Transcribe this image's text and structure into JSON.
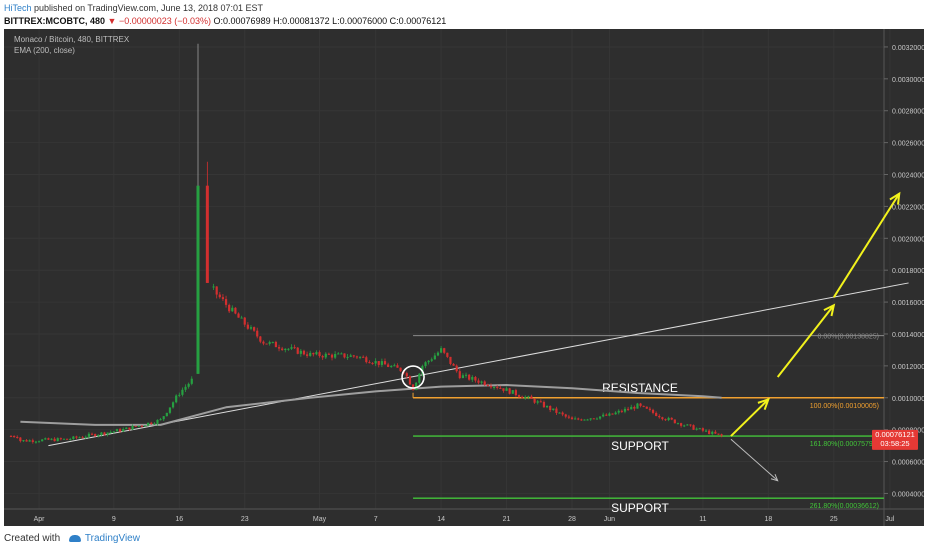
{
  "header": {
    "author": "HiTech",
    "published": "published on TradingView.com, June 13, 2018 07:01 EST",
    "symbol": "BITTREX:MCOBTC, 480",
    "change": "▼ −0.00000023 (−0.03%)",
    "ohlc": "O:0.00076989 H:0.00081372 L:0.00076000 C:0.00076121"
  },
  "legend": {
    "title": "Monaco / Bitcoin, 480, BITTREX",
    "indicator": "EMA (200, close)"
  },
  "footer": {
    "created": "Created with",
    "brand": "TradingView"
  },
  "price_label": {
    "value": "0.00076121",
    "countdown": "03:58:25",
    "color": "#e53935"
  },
  "colors": {
    "background": "#2e2e2e",
    "up": "#26a041",
    "down": "#d32f2f",
    "fib": "#f0a030",
    "support": "#43c43a",
    "arrow": "#f2f21c",
    "ema": "#9e9e9e",
    "trend": "#dddddd"
  },
  "chart_data": {
    "type": "candlestick",
    "title": "Monaco / Bitcoin, 480, BITTREX",
    "y_ticks": [
      "0.00320000",
      "0.00300000",
      "0.00280000",
      "0.00260000",
      "0.00240000",
      "0.00220000",
      "0.00200000",
      "0.00180000",
      "0.00160000",
      "0.00140000",
      "0.00120000",
      "0.00100000",
      "0.00080000",
      "0.00060000",
      "0.00040000"
    ],
    "x_ticks": [
      "Apr",
      "9",
      "16",
      "23",
      "May",
      "7",
      "14",
      "21",
      "28",
      "Jun",
      "11",
      "18",
      "25",
      "Jul"
    ],
    "ylim": [
      0.00034,
      0.0033
    ],
    "price_path": [
      {
        "d": "2018-03-30",
        "p": 0.00073
      },
      {
        "d": "2018-04-04",
        "p": 0.00074
      },
      {
        "d": "2018-04-10",
        "p": 0.0008
      },
      {
        "d": "2018-04-14",
        "p": 0.00086
      },
      {
        "d": "2018-04-16",
        "p": 0.00103
      },
      {
        "d": "2018-04-18",
        "p": 0.00115
      },
      {
        "d": "2018-04-19",
        "p": 0.00172
      },
      {
        "d": "2018-04-20",
        "p": 0.00165
      },
      {
        "d": "2018-04-22",
        "p": 0.00152
      },
      {
        "d": "2018-04-25",
        "p": 0.00135
      },
      {
        "d": "2018-04-30",
        "p": 0.00127
      },
      {
        "d": "2018-05-05",
        "p": 0.00126
      },
      {
        "d": "2018-05-10",
        "p": 0.00117
      },
      {
        "d": "2018-05-11",
        "p": 0.00106
      },
      {
        "d": "2018-05-12",
        "p": 0.0012
      },
      {
        "d": "2018-05-14",
        "p": 0.0013
      },
      {
        "d": "2018-05-16",
        "p": 0.00114
      },
      {
        "d": "2018-05-20",
        "p": 0.00107
      },
      {
        "d": "2018-05-24",
        "p": 0.00098
      },
      {
        "d": "2018-05-28",
        "p": 0.00086
      },
      {
        "d": "2018-06-01",
        "p": 0.00089
      },
      {
        "d": "2018-06-04",
        "p": 0.00095
      },
      {
        "d": "2018-06-07",
        "p": 0.00087
      },
      {
        "d": "2018-06-10",
        "p": 0.00081
      },
      {
        "d": "2018-06-13",
        "p": 0.00076
      }
    ],
    "spikes": [
      {
        "d": "2018-04-18",
        "high": 0.00322,
        "open": 0.00115,
        "close": 0.00233
      },
      {
        "d": "2018-04-19",
        "high": 0.00248,
        "open": 0.00233,
        "close": 0.00172
      }
    ],
    "ema_200": [
      {
        "d": "2018-03-30",
        "p": 0.00085
      },
      {
        "d": "2018-04-07",
        "p": 0.00083
      },
      {
        "d": "2018-04-14",
        "p": 0.00083
      },
      {
        "d": "2018-04-21",
        "p": 0.00094
      },
      {
        "d": "2018-04-30",
        "p": 0.001
      },
      {
        "d": "2018-05-07",
        "p": 0.00104
      },
      {
        "d": "2018-05-14",
        "p": 0.00107
      },
      {
        "d": "2018-05-21",
        "p": 0.00108
      },
      {
        "d": "2018-05-28",
        "p": 0.00106
      },
      {
        "d": "2018-06-04",
        "p": 0.00103
      },
      {
        "d": "2018-06-11",
        "p": 0.00101
      },
      {
        "d": "2018-06-13",
        "p": 0.001
      }
    ],
    "trendline": {
      "from": {
        "d": "2018-04-02",
        "p": 0.0007
      },
      "to": {
        "d": "2018-07-03",
        "p": 0.00172
      }
    },
    "fib_top": {
      "from": "2018-05-11",
      "p": 0.00139,
      "label": "0.00%(0.00138825)"
    },
    "levels": [
      {
        "p": 0.001,
        "label": "RESISTANCE",
        "fib": "100.00%(0.00100005)",
        "kind": "resistance"
      },
      {
        "p": 0.00076,
        "label": "SUPPORT",
        "fib": "161.80%(0.00075792)",
        "kind": "support"
      },
      {
        "p": 0.00037,
        "label": "SUPPORT",
        "fib": "261.80%(0.00036612)",
        "kind": "support"
      }
    ],
    "arrows": [
      {
        "kind": "up",
        "from": {
          "d": "2018-06-14",
          "p": 0.00076
        },
        "to": {
          "d": "2018-06-18",
          "p": 0.00099
        }
      },
      {
        "kind": "up",
        "from": {
          "d": "2018-06-19",
          "p": 0.00113
        },
        "to": {
          "d": "2018-06-25",
          "p": 0.00158
        }
      },
      {
        "kind": "up",
        "from": {
          "d": "2018-06-25",
          "p": 0.00163
        },
        "to": {
          "d": "2018-07-02",
          "p": 0.00228
        }
      },
      {
        "kind": "down",
        "from": {
          "d": "2018-06-14",
          "p": 0.00074
        },
        "to": {
          "d": "2018-06-19",
          "p": 0.00048
        }
      }
    ],
    "circle": {
      "d": "2018-05-11",
      "p": 0.00113
    }
  }
}
